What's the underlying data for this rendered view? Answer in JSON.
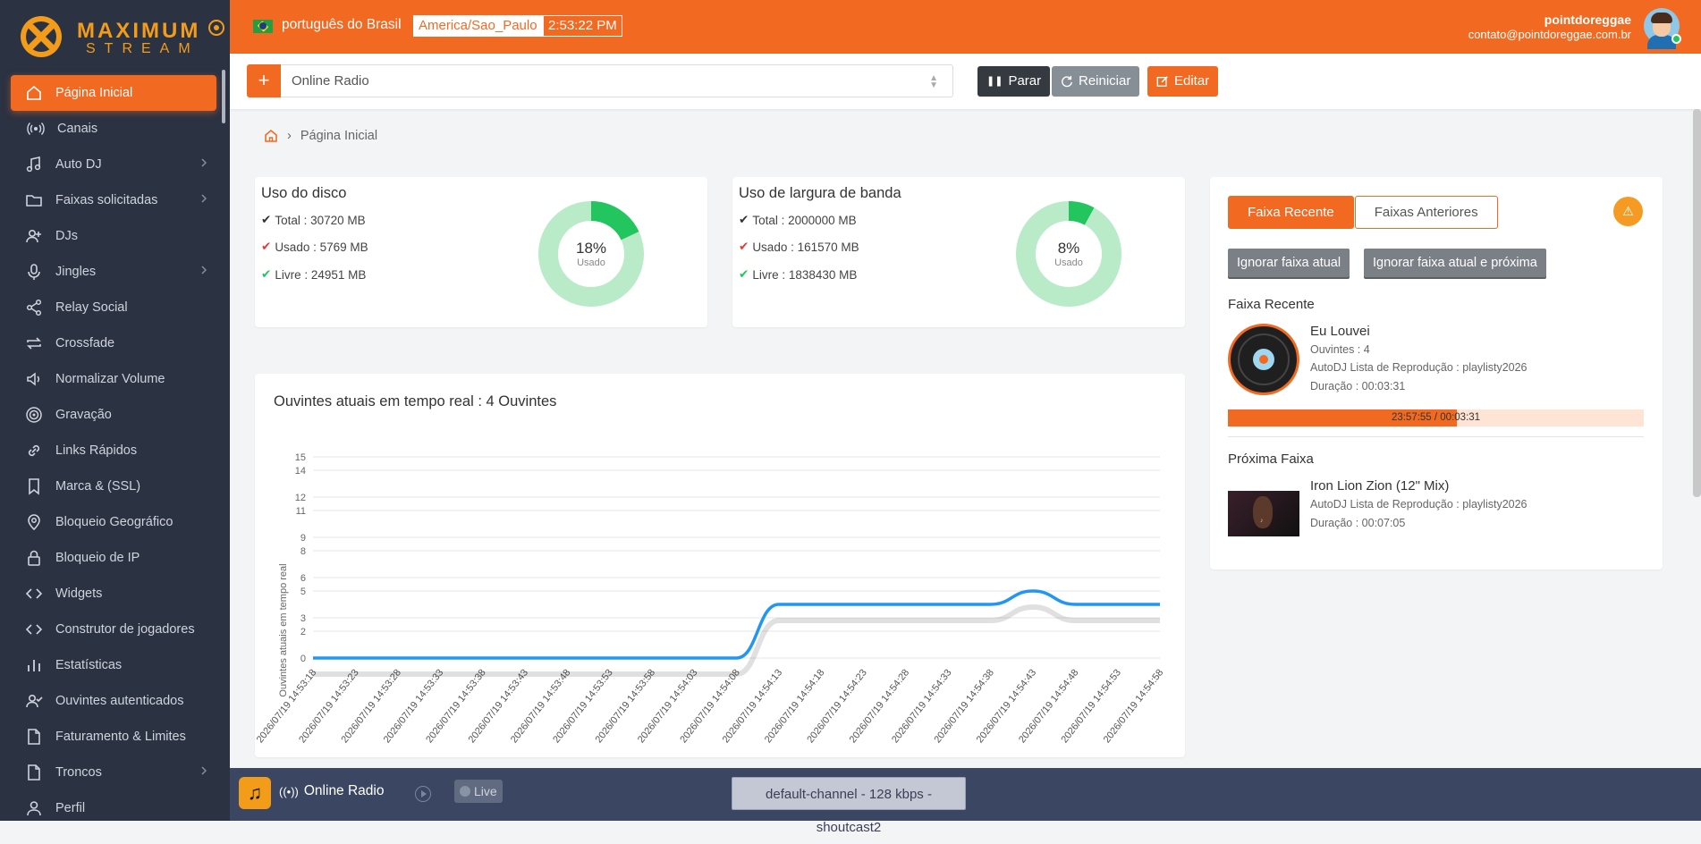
{
  "brand": {
    "line1": "MAXIMUM",
    "line2": "STREAM"
  },
  "sidebar": {
    "items": [
      {
        "label": "Página Inicial",
        "icon": "home-icon",
        "active": true,
        "chevron": false
      },
      {
        "label": "Canais",
        "icon": "broadcast-icon",
        "active": false,
        "chevron": false
      },
      {
        "label": "Auto DJ",
        "icon": "music-note-icon",
        "active": false,
        "chevron": true
      },
      {
        "label": "Faixas solicitadas",
        "icon": "folder-icon",
        "active": false,
        "chevron": true
      },
      {
        "label": "DJs",
        "icon": "user-plus-icon",
        "active": false,
        "chevron": false
      },
      {
        "label": "Jingles",
        "icon": "microphone-icon",
        "active": false,
        "chevron": true
      },
      {
        "label": "Relay Social",
        "icon": "share-icon",
        "active": false,
        "chevron": false
      },
      {
        "label": "Crossfade",
        "icon": "repeat-icon",
        "active": false,
        "chevron": false
      },
      {
        "label": "Normalizar Volume",
        "icon": "volume-icon",
        "active": false,
        "chevron": false
      },
      {
        "label": "Gravação",
        "icon": "record-icon",
        "active": false,
        "chevron": false
      },
      {
        "label": "Links Rápidos",
        "icon": "link-icon",
        "active": false,
        "chevron": false
      },
      {
        "label": "Marca & (SSL)",
        "icon": "bookmark-icon",
        "active": false,
        "chevron": false
      },
      {
        "label": "Bloqueio Geográfico",
        "icon": "map-pin-icon",
        "active": false,
        "chevron": false
      },
      {
        "label": "Bloqueio de IP",
        "icon": "lock-icon",
        "active": false,
        "chevron": false
      },
      {
        "label": "Widgets",
        "icon": "code-icon",
        "active": false,
        "chevron": false
      },
      {
        "label": "Construtor de jogadores",
        "icon": "code-icon",
        "active": false,
        "chevron": false
      },
      {
        "label": "Estatísticas",
        "icon": "bar-chart-icon",
        "active": false,
        "chevron": false
      },
      {
        "label": "Ouvintes autenticados",
        "icon": "user-check-icon",
        "active": false,
        "chevron": false
      },
      {
        "label": "Faturamento & Limites",
        "icon": "file-icon",
        "active": false,
        "chevron": false
      },
      {
        "label": "Troncos",
        "icon": "file-icon",
        "active": false,
        "chevron": true
      },
      {
        "label": "Perfil",
        "icon": "user-icon",
        "active": false,
        "chevron": false
      }
    ]
  },
  "topbar": {
    "language": "português do Brasil",
    "timezone": "America/Sao_Paulo",
    "clock": "2:53:22 PM",
    "username": "pointdoreggae",
    "email": "contato@pointdoreggae.com.br"
  },
  "toolbar": {
    "add_symbol": "+",
    "channel_select": "Online Radio",
    "stop_label": "Parar",
    "restart_label": "Reiniciar",
    "edit_label": "Editar"
  },
  "breadcrumb": {
    "current": "Página Inicial"
  },
  "disk": {
    "title": "Uso do disco",
    "total": "Total : 30720 MB",
    "used": "Usado : 5769 MB",
    "free": "Livre : 24951 MB",
    "percent": 18,
    "percent_label": "18%",
    "sub_label": "Usado"
  },
  "bandwidth": {
    "title": "Uso de largura de banda",
    "total": "Total : 2000000 MB",
    "used": "Usado : 161570 MB",
    "free": "Livre : 1838430 MB",
    "percent": 8,
    "percent_label": "8%",
    "sub_label": "Usado"
  },
  "colors": {
    "accent": "#f26a21",
    "donut_light": "#b9ebc8",
    "donut_dark": "#22c55e",
    "line": "#2196f3"
  },
  "tracks": {
    "tab_recent": "Faixa Recente",
    "tab_previous": "Faixas Anteriores",
    "skip_current": "Ignorar faixa atual",
    "skip_current_next": "Ignorar faixa atual e próxima",
    "recent_heading": "Faixa Recente",
    "recent": {
      "title": "Eu Louvei",
      "listeners": "Ouvintes : 4",
      "playlist": "AutoDJ Lista de Reprodução : playlisty2026",
      "duration": "Duração : 00:03:31",
      "progress_text": "23:57:55 / 00:03:31",
      "progress_fraction": 0.55
    },
    "next_heading": "Próxima Faixa",
    "next": {
      "title": "Iron Lion Zion (12\" Mix)",
      "playlist": "AutoDJ Lista de Reprodução : playlisty2026",
      "duration": "Duração : 00:07:05"
    }
  },
  "chart_data": {
    "type": "line",
    "title": "Ouvintes atuais em tempo real : 4 Ouvintes",
    "ylabel": "Ouvintes atuais em tempo real",
    "xlabel": "",
    "ylim": [
      0,
      15
    ],
    "yticks": [
      0,
      2,
      3,
      5,
      6,
      8,
      9,
      11,
      12,
      14,
      15
    ],
    "x": [
      "2026/07/19 14:53:18",
      "2026/07/19 14:53:23",
      "2026/07/19 14:53:28",
      "2026/07/19 14:53:33",
      "2026/07/19 14:53:38",
      "2026/07/19 14:53:43",
      "2026/07/19 14:53:48",
      "2026/07/19 14:53:53",
      "2026/07/19 14:53:58",
      "2026/07/19 14:54:03",
      "2026/07/19 14:54:08",
      "2026/07/19 14:54:13",
      "2026/07/19 14:54:18",
      "2026/07/19 14:54:23",
      "2026/07/19 14:54:28",
      "2026/07/19 14:54:33",
      "2026/07/19 14:54:38",
      "2026/07/19 14:54:43",
      "2026/07/19 14:54:48",
      "2026/07/19 14:54:53",
      "2026/07/19 14:54:58"
    ],
    "series": [
      {
        "values": [
          0,
          0,
          0,
          0,
          0,
          0,
          0,
          0,
          0,
          0,
          0,
          4,
          4,
          4,
          4,
          4,
          4,
          5,
          4,
          4,
          4
        ]
      }
    ],
    "grid": true,
    "legend": "none"
  },
  "player": {
    "station": "Online Radio",
    "live_label": "Live",
    "channel_info": "default-channel - 128 kbps - shoutcast2"
  }
}
